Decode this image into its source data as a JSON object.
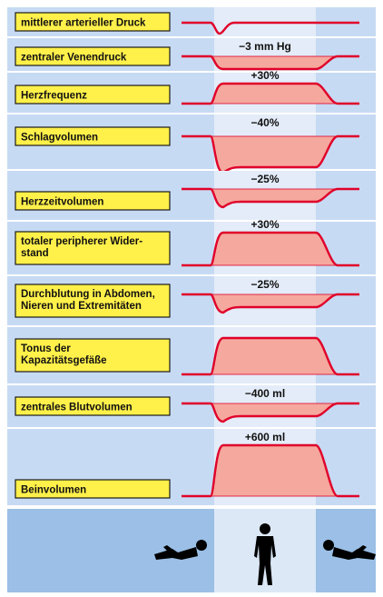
{
  "colors": {
    "panel_bg": "#c7daf3",
    "panel_highlight": "#e3ecf8",
    "label_fill": "#fff04a",
    "label_border": "#1a1a1a",
    "curve": "#e0002a",
    "curve_fill": "#f5a89d",
    "separator": "#ffffff",
    "bottom_bg": "#9bbfe6",
    "bottom_highlight": "#dce8f6",
    "figure": "#000000"
  },
  "rows": [
    {
      "label": "mittlerer arterieller Druck",
      "change": "",
      "shape": "dip-small"
    },
    {
      "label": "zentraler Venendruck",
      "change": "−3 mm Hg",
      "shape": "down"
    },
    {
      "label": "Herzfrequenz",
      "change": "+30%",
      "shape": "up"
    },
    {
      "label": "Schlagvolumen",
      "change": "−40%",
      "shape": "down-deep"
    },
    {
      "label": "Herzzeitvolumen",
      "change": "−25%",
      "shape": "down"
    },
    {
      "label": "totaler peripherer Wider-\nstand",
      "change": "+30%",
      "shape": "up"
    },
    {
      "label": "Durchblutung in Abdomen,\nNieren und Extremitäten",
      "change": "−25%",
      "shape": "down"
    },
    {
      "label": "Tonus der\nKapazitätsgefäße",
      "change": "",
      "shape": "up"
    },
    {
      "label": "zentrales Blutvolumen",
      "change": "−400 ml",
      "shape": "down"
    },
    {
      "label": "Beinvolumen",
      "change": "+600 ml",
      "shape": "up-tall"
    }
  ],
  "posture_icons": [
    "lying-person-icon",
    "standing-person-icon",
    "lying-person-icon"
  ]
}
